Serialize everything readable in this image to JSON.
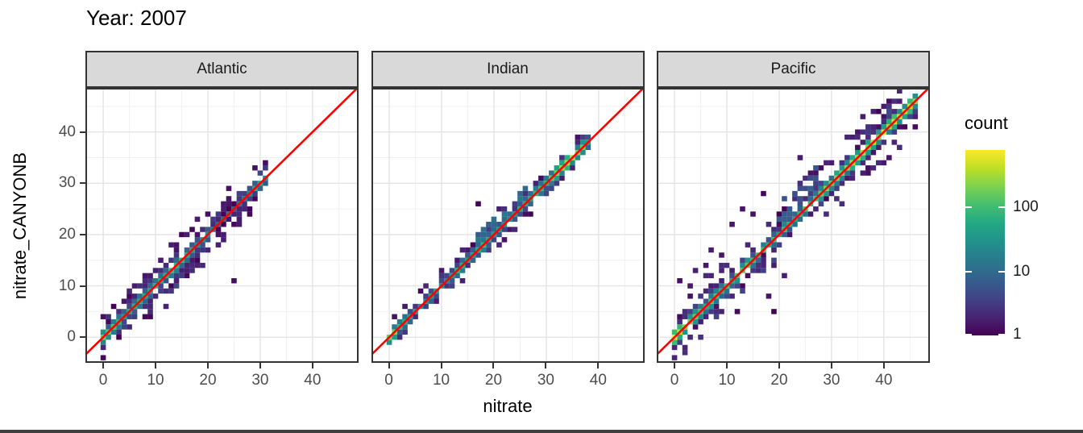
{
  "chart_data": {
    "type": "heatmap",
    "subtype": "bin2d-scatter-density",
    "title": "Year: 2007",
    "xlabel": "nitrate",
    "ylabel": "nitrate_CANYONB",
    "axes": {
      "x_ticks": [
        0,
        10,
        20,
        30,
        40
      ],
      "y_ticks": [
        0,
        10,
        20,
        30,
        40
      ],
      "minor_ticks": [
        5,
        15,
        25,
        35,
        45
      ],
      "xlim": [
        -3.4,
        48.8
      ],
      "ylim": [
        -5.0,
        48.6
      ],
      "grid": true,
      "equal_scales": true
    },
    "identity_line": {
      "equation": "y = x",
      "color": "#ff0000"
    },
    "legend": {
      "title": "count",
      "position": "right",
      "scale": "log10",
      "tick_values": [
        100,
        10,
        1
      ],
      "tick_labels": [
        "100",
        "10",
        "1"
      ],
      "max_count": 750,
      "palette": "viridis"
    },
    "viridis_stops": [
      [
        0.0,
        "#440154"
      ],
      [
        0.1,
        "#482475"
      ],
      [
        0.2,
        "#414487"
      ],
      [
        0.3,
        "#355f8d"
      ],
      [
        0.4,
        "#2a788e"
      ],
      [
        0.5,
        "#21918c"
      ],
      [
        0.6,
        "#22a884"
      ],
      [
        0.7,
        "#42be71"
      ],
      [
        0.8,
        "#7ad151"
      ],
      [
        0.9,
        "#bddf26"
      ],
      [
        1.0,
        "#fde725"
      ]
    ],
    "facets": [
      {
        "name": "Atlantic",
        "seed": 101,
        "x_start": 0,
        "x_end": 31,
        "diagonal_count_profile": [
          [
            0,
            260
          ],
          [
            1,
            220
          ],
          [
            2,
            110
          ],
          [
            4,
            45
          ],
          [
            6,
            55
          ],
          [
            8,
            60
          ],
          [
            10,
            65
          ],
          [
            12,
            70
          ],
          [
            14,
            80
          ],
          [
            16,
            55
          ],
          [
            18,
            30
          ],
          [
            20,
            22
          ],
          [
            22,
            14
          ],
          [
            24,
            10
          ],
          [
            26,
            12
          ],
          [
            28,
            25
          ],
          [
            29,
            55
          ],
          [
            30,
            80
          ],
          [
            31,
            30
          ]
        ],
        "p2": 0.5,
        "scatter": 1.6,
        "reach": 3,
        "bands": [
          {
            "x0": 12,
            "x1": 18,
            "dy0": -4,
            "dy1": -2,
            "density": 0.4,
            "lo": 1,
            "hi": 5
          },
          {
            "x0": 3,
            "x1": 9,
            "dy0": -3,
            "dy1": -2,
            "density": 0.35,
            "lo": 1,
            "hi": 4
          },
          {
            "x0": 5,
            "x1": 11,
            "dy0": 2,
            "dy1": 3,
            "density": 0.3,
            "lo": 1,
            "hi": 3
          }
        ],
        "outliers": [
          [
            25,
            11
          ],
          [
            13,
            18
          ],
          [
            14,
            17
          ],
          [
            11,
            15
          ],
          [
            23,
            26
          ],
          [
            26,
            22
          ],
          [
            8,
            12
          ],
          [
            2,
            6
          ],
          [
            0,
            4
          ],
          [
            20,
            24
          ],
          [
            17,
            21
          ],
          [
            16,
            12
          ],
          [
            22,
            18
          ],
          [
            18,
            23
          ],
          [
            12,
            6
          ],
          [
            9,
            4
          ],
          [
            28,
            25
          ],
          [
            24,
            29
          ],
          [
            6,
            10
          ],
          [
            15,
            20
          ]
        ]
      },
      {
        "name": "Indian",
        "seed": 202,
        "x_start": 0,
        "x_end": 38,
        "diagonal_count_profile": [
          [
            0,
            280
          ],
          [
            1,
            240
          ],
          [
            2,
            70
          ],
          [
            4,
            30
          ],
          [
            6,
            26
          ],
          [
            8,
            32
          ],
          [
            10,
            40
          ],
          [
            12,
            48
          ],
          [
            14,
            60
          ],
          [
            16,
            65
          ],
          [
            18,
            55
          ],
          [
            20,
            26
          ],
          [
            22,
            30
          ],
          [
            24,
            42
          ],
          [
            26,
            60
          ],
          [
            28,
            70
          ],
          [
            30,
            90
          ],
          [
            32,
            140
          ],
          [
            34,
            240
          ],
          [
            35,
            290
          ],
          [
            36,
            240
          ],
          [
            37,
            140
          ],
          [
            38,
            70
          ]
        ],
        "p2": 0.22,
        "scatter": 0.6,
        "reach": 2,
        "bands": [
          {
            "x0": 17,
            "x1": 26,
            "dy0": 1,
            "dy1": 3,
            "density": 0.55,
            "lo": 2,
            "hi": 14
          },
          {
            "x0": 28,
            "x1": 33,
            "dy0": -2,
            "dy1": -1,
            "density": 0.4,
            "lo": 1,
            "hi": 6
          }
        ],
        "outliers": [
          [
            17,
            26
          ],
          [
            23,
            21
          ],
          [
            10,
            13
          ],
          [
            3,
            6
          ],
          [
            21,
            25
          ],
          [
            25,
            28
          ],
          [
            30,
            28
          ],
          [
            33,
            31
          ],
          [
            1,
            4
          ],
          [
            6,
            9
          ],
          [
            14,
            11
          ],
          [
            36,
            38
          ]
        ]
      },
      {
        "name": "Pacific",
        "seed": 303,
        "x_start": 0,
        "x_end": 46,
        "diagonal_count_profile": [
          [
            0,
            600
          ],
          [
            1,
            380
          ],
          [
            2,
            190
          ],
          [
            4,
            120
          ],
          [
            6,
            100
          ],
          [
            8,
            90
          ],
          [
            10,
            90
          ],
          [
            12,
            110
          ],
          [
            14,
            140
          ],
          [
            16,
            115
          ],
          [
            18,
            90
          ],
          [
            20,
            70
          ],
          [
            22,
            80
          ],
          [
            24,
            90
          ],
          [
            26,
            110
          ],
          [
            28,
            140
          ],
          [
            30,
            170
          ],
          [
            32,
            215
          ],
          [
            34,
            260
          ],
          [
            36,
            300
          ],
          [
            38,
            350
          ],
          [
            40,
            420
          ],
          [
            42,
            500
          ],
          [
            44,
            580
          ],
          [
            45,
            430
          ],
          [
            46,
            180
          ]
        ],
        "p2": 0.6,
        "scatter": 2.4,
        "reach": 4,
        "bands": [
          {
            "x0": 20,
            "x1": 27,
            "dy0": 2,
            "dy1": 6,
            "density": 0.5,
            "lo": 1,
            "hi": 8
          },
          {
            "x0": 36,
            "x1": 41,
            "dy0": 2,
            "dy1": 4,
            "density": 0.35,
            "lo": 1,
            "hi": 4
          },
          {
            "x0": 8,
            "x1": 20,
            "dy0": -4,
            "dy1": -2,
            "density": 0.3,
            "lo": 1,
            "hi": 4
          },
          {
            "x0": 2,
            "x1": 7,
            "dy0": 2,
            "dy1": 4,
            "density": 0.35,
            "lo": 1,
            "hi": 3
          }
        ],
        "outliers": [
          [
            17,
            28
          ],
          [
            13,
            25
          ],
          [
            11,
            22
          ],
          [
            1,
            11
          ],
          [
            4,
            13
          ],
          [
            6,
            14
          ],
          [
            1,
            4
          ],
          [
            18,
            8
          ],
          [
            19,
            5
          ],
          [
            12,
            5
          ],
          [
            9,
            16
          ],
          [
            38,
            44
          ],
          [
            36,
            43
          ],
          [
            40,
            45
          ],
          [
            46,
            43
          ],
          [
            24,
            35
          ],
          [
            28,
            33
          ],
          [
            15,
            24
          ],
          [
            7,
            17
          ],
          [
            3,
            10
          ],
          [
            21,
            12
          ],
          [
            44,
            41
          ]
        ]
      }
    ],
    "style": {
      "panel_background": "#ffffff",
      "panel_border": "#333333",
      "grid_major": "#e4e4e4",
      "grid_minor": "#f1f1f1",
      "strip_background": "#d9d9d9",
      "tick_label_color": "#4d4d4d",
      "bottom_bar_color": "#404040"
    }
  }
}
